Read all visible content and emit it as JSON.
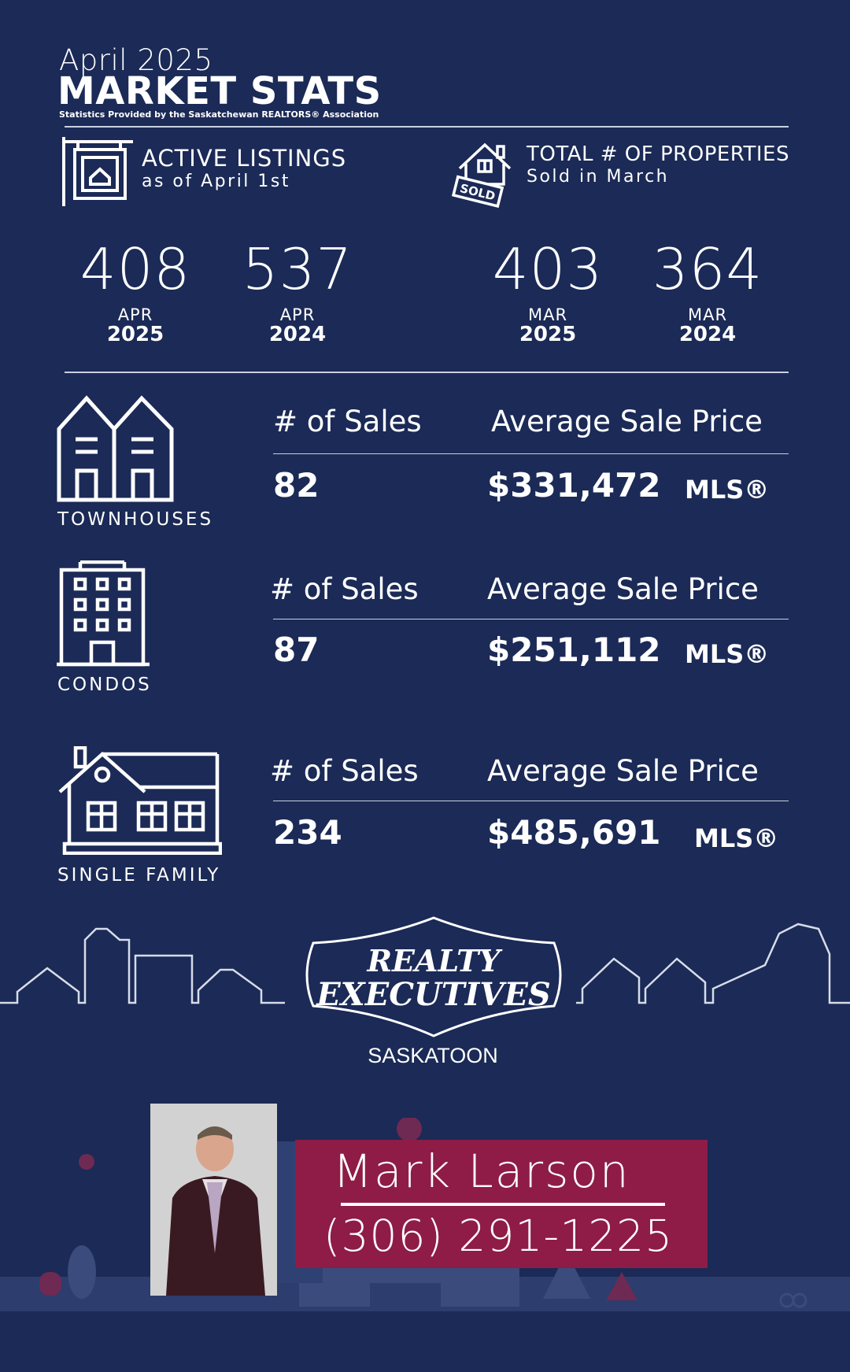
{
  "header": {
    "month": "April 2025",
    "title": "MARKET STATS",
    "source": "Statistics Provided by the Saskatchewan REALTORS® Association"
  },
  "active_listings": {
    "title": "ACTIVE LISTINGS",
    "subtitle": "as of April 1st",
    "icon": "house-sign-icon",
    "stats": [
      {
        "value": "408",
        "month": "APR",
        "year": "2025"
      },
      {
        "value": "537",
        "month": "APR",
        "year": "2024"
      }
    ]
  },
  "total_sold": {
    "title": "TOTAL # OF PROPERTIES",
    "subtitle": "Sold in March",
    "icon": "sold-house-icon",
    "sign_text": "SOLD",
    "stats": [
      {
        "value": "403",
        "month": "MAR",
        "year": "2025"
      },
      {
        "value": "364",
        "month": "MAR",
        "year": "2024"
      }
    ]
  },
  "categories": [
    {
      "name": "TOWNHOUSES",
      "icon": "townhouse-icon",
      "sales_label": "# of Sales",
      "price_label": "Average Sale Price",
      "sales": "82",
      "price": "$331,472",
      "mls": "MLS®"
    },
    {
      "name": "CONDOS",
      "icon": "condo-building-icon",
      "sales_label": "# of Sales",
      "price_label": "Average Sale Price",
      "sales": "87",
      "price": "$251,112",
      "mls": "MLS®"
    },
    {
      "name": "SINGLE FAMILY",
      "icon": "single-family-house-icon",
      "sales_label": "# of Sales",
      "price_label": "Average Sale Price",
      "sales": "234",
      "price": "$485,691",
      "mls": "MLS®"
    }
  ],
  "brand": {
    "line1": "REALTY",
    "line2": "EXECUTIVES",
    "city": "SASKATOON"
  },
  "agent": {
    "name": "Mark Larson",
    "phone": "(306) 291-1225"
  },
  "colors": {
    "background": "#1b2a56",
    "agent_box": "#8e1c46",
    "text": "#ffffff"
  }
}
